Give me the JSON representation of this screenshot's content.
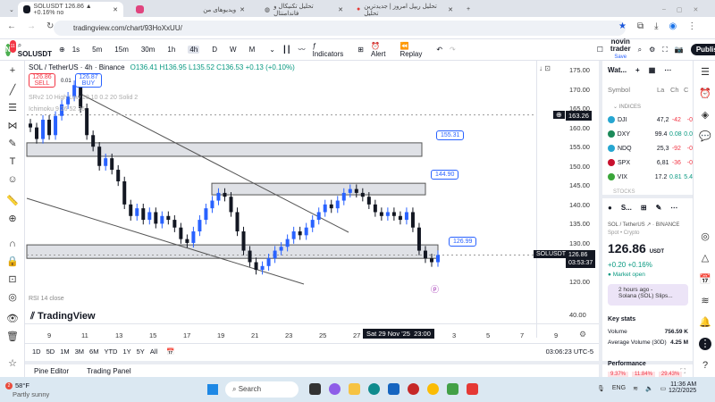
{
  "browser": {
    "tabs": [
      {
        "label": "SOLUSDT 126.86 ▲ +0.16% no",
        "active": true
      },
      {
        "label": "ویدیوهای من"
      },
      {
        "label": "تحلیل تکنیکال و فاندامنتال"
      },
      {
        "label": "تحلیل ریپل امروز | جدیدترین تحلیل"
      }
    ],
    "new_tab": "+",
    "url": "tradingview.com/chart/93HoXxUU/"
  },
  "toolbar": {
    "avatar": "N",
    "badge": "11",
    "symbol": "SOLUSDT",
    "intervals": [
      "1s",
      "5m",
      "15m",
      "30m",
      "1h",
      "4h",
      "D",
      "W",
      "M"
    ],
    "active_interval": "4h",
    "indicators": "Indicators",
    "alert": "Alert",
    "replay": "Replay",
    "layout_name": "novin trader",
    "layout_status": "Save",
    "publish": "Publish"
  },
  "legend": {
    "title": "SOL / TetherUS · 4h · Binance",
    "ohlc": "O136.41 H136.95 L135.52 C136.53 +0.13 (+0.10%)",
    "sell_price": "126.86",
    "sell": "SELL",
    "spread": "0.01",
    "buy_price": "126.87",
    "buy": "BUY",
    "ind1": "SRv2 10 High Low 10 10 0.2 20 Solid 2",
    "ind2": "Ichimoku 9 26 52 26",
    "rsi": "RSI 14 close",
    "logo": "TradingView"
  },
  "chart_data": {
    "type": "candlestick",
    "symbol": "SOLUSDT",
    "interval": "4h",
    "ylim": [
      118,
      176
    ],
    "price_ticks": [
      "175.00",
      "170.00",
      "165.00",
      "160.00",
      "155.00",
      "150.00",
      "145.00",
      "140.00",
      "135.00",
      "130.00",
      "120.00",
      "40.00"
    ],
    "closes": [
      160,
      157,
      162,
      158,
      163,
      166,
      168,
      171,
      165,
      158,
      155,
      150,
      152,
      149,
      146,
      140,
      137,
      139,
      136,
      138,
      135,
      137,
      136,
      134,
      131,
      130,
      133,
      136,
      139,
      141,
      143,
      142,
      138,
      133,
      128,
      125,
      123,
      124,
      126,
      128,
      129,
      131,
      133,
      132,
      134,
      136,
      138,
      140,
      139,
      141,
      143,
      144,
      143,
      142,
      140,
      138,
      137,
      138,
      137,
      136,
      138,
      134,
      128,
      126,
      125,
      126.86
    ],
    "levels": [
      {
        "label": "155.31",
        "price": 155.31
      },
      {
        "label": "144.90",
        "price": 144.9
      },
      {
        "label": "126.99",
        "price": 126.99
      }
    ],
    "crosshair_price": "163.26",
    "last_price": "126.86",
    "countdown": "03:53:37",
    "last_symbol": "SOLUSDT",
    "x_ticks": [
      "9",
      "11",
      "13",
      "15",
      "17",
      "19",
      "21",
      "23",
      "25",
      "27",
      "3",
      "5",
      "7",
      "9"
    ],
    "crosshair_time": "Sat 29 Nov '25  23:00"
  },
  "rangebar": {
    "ranges": [
      "1D",
      "5D",
      "1M",
      "3M",
      "6M",
      "YTD",
      "1Y",
      "5Y",
      "All"
    ],
    "clock": "03:06:23 UTC-5"
  },
  "bottom": {
    "pine": "Pine Editor",
    "trading": "Trading Panel"
  },
  "watchlist": {
    "title": "Wat...",
    "cols": [
      "Symbol",
      "La",
      "Ch",
      "C"
    ],
    "section": "INDICES",
    "rows": [
      {
        "sym": "DJI",
        "last": "47,2",
        "chg": "-42",
        "pct": "-0",
        "color": "#26a6d1",
        "neg": true
      },
      {
        "sym": "DXY",
        "last": "99.4",
        "chg": "0.08",
        "pct": "0.0",
        "color": "#1b8a5a",
        "neg": false
      },
      {
        "sym": "NDQ",
        "last": "25,3",
        "chg": "-92",
        "pct": "-0",
        "color": "#26a6d1",
        "neg": true
      },
      {
        "sym": "SPX",
        "last": "6,81",
        "chg": "-36",
        "pct": "-0",
        "color": "#c8102e",
        "neg": true
      },
      {
        "sym": "VIX",
        "last": "17.2",
        "chg": "0.81",
        "pct": "5.4",
        "color": "#3aa63a",
        "neg": false
      }
    ],
    "section2": "STOCKS"
  },
  "details": {
    "short": "S...",
    "name": "SOL / TetherUS",
    "exchange": "BINANCE",
    "type": "Spot • Crypto",
    "price": "126.86",
    "currency": "USDT",
    "change": "+0.20",
    "change_pct": "+0.16%",
    "status": "Market open",
    "news_time": "2 hours ago -",
    "news_title": "Solana (SOL) Slips...",
    "key_stats": "Key stats",
    "volume_label": "Volume",
    "volume": "756.59 K",
    "avg_label": "Average Volume (30D)",
    "avg": "4.25 M",
    "performance": "Performance",
    "perf": [
      "9.37%",
      "11.84%",
      "29.43%"
    ]
  },
  "taskbar": {
    "temp": "58°F",
    "weather": "Partly sunny",
    "weather_badge": "2",
    "search": "Search",
    "lang": "ENG",
    "time": "11:36 AM",
    "date": "12/2/2025"
  },
  "colors": {
    "up": "#2962ff",
    "down": "#131722",
    "accent": "#2962ff",
    "neg": "#f23645",
    "pos": "#089981"
  }
}
